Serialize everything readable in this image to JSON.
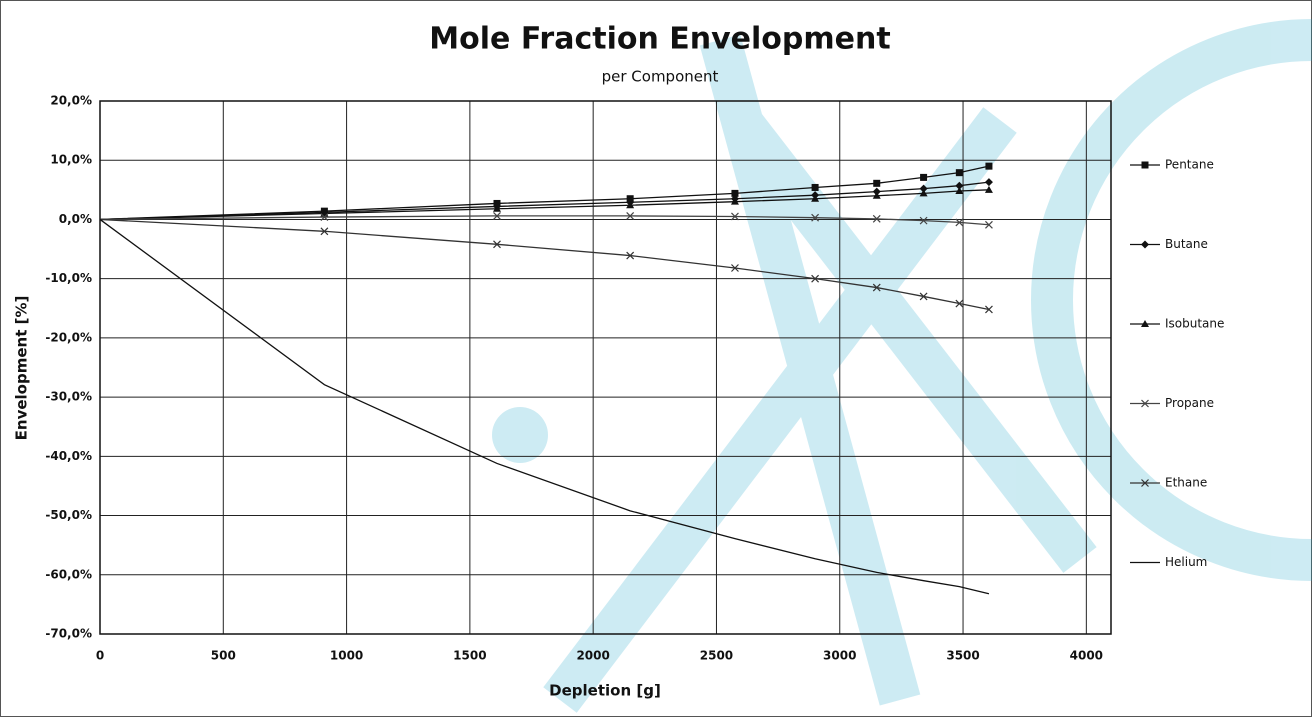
{
  "chart_data": {
    "type": "line",
    "title": "Mole Fraction Envelopment",
    "subtitle": "per Component",
    "x_label": "Depletion [g]",
    "y_label": "Envelopment [%]",
    "x": [
      0,
      910,
      1610,
      2150,
      2575,
      2900,
      3150,
      3340,
      3485,
      3605
    ],
    "series": [
      {
        "name": "Pentane",
        "color": "#111111",
        "marker": "square",
        "values": [
          0,
          1.4,
          2.7,
          3.5,
          4.4,
          5.4,
          6.1,
          7.1,
          7.9,
          9.0
        ]
      },
      {
        "name": "Butane",
        "color": "#111111",
        "marker": "diamond",
        "values": [
          0,
          1.2,
          2.2,
          2.9,
          3.5,
          4.1,
          4.7,
          5.2,
          5.7,
          6.3
        ]
      },
      {
        "name": "Isobutane",
        "color": "#111111",
        "marker": "triangle",
        "values": [
          0,
          1.0,
          1.8,
          2.4,
          3.0,
          3.5,
          4.0,
          4.4,
          4.8,
          5.0
        ]
      },
      {
        "name": "Propane",
        "color": "#444444",
        "marker": "cross",
        "values": [
          0,
          0.4,
          0.6,
          0.6,
          0.5,
          0.3,
          0.1,
          -0.2,
          -0.5,
          -0.9
        ]
      },
      {
        "name": "Ethane",
        "color": "#333333",
        "marker": "x",
        "values": [
          0,
          -2.0,
          -4.2,
          -6.1,
          -8.2,
          -10.0,
          -11.5,
          -13.0,
          -14.2,
          -15.2
        ]
      },
      {
        "name": "Helium",
        "color": "#111111",
        "marker": "none",
        "values": [
          0,
          -27.9,
          -41.2,
          -49.2,
          -53.9,
          -57.3,
          -59.6,
          -61.0,
          -62.0,
          -63.2
        ]
      }
    ],
    "xlim": [
      0,
      4100
    ],
    "xticks": [
      0,
      500,
      1000,
      1500,
      2000,
      2500,
      3000,
      3500,
      4000
    ],
    "ylim": [
      -70,
      20
    ],
    "yticks": [
      {
        "value": 20,
        "label": "20,0%"
      },
      {
        "value": 10,
        "label": "10,0%"
      },
      {
        "value": 0,
        "label": "0,0%"
      },
      {
        "value": -10,
        "label": "-10,0%"
      },
      {
        "value": -20,
        "label": "-20,0%"
      },
      {
        "value": -30,
        "label": "-30,0%"
      },
      {
        "value": -40,
        "label": "-40,0%"
      },
      {
        "value": -50,
        "label": "-50,0%"
      },
      {
        "value": -60,
        "label": "-60,0%"
      },
      {
        "value": -70,
        "label": "-70,0%"
      }
    ],
    "grid": true,
    "legend": "right"
  }
}
